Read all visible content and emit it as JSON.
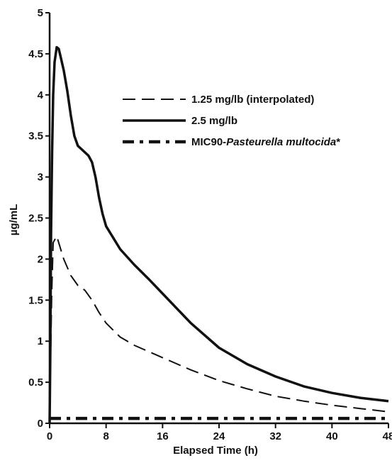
{
  "chart_data": {
    "type": "line",
    "title": "",
    "xlabel": "Elapsed Time (h)",
    "ylabel": "µg/mL",
    "xlim": [
      0,
      48
    ],
    "ylim": [
      0,
      5
    ],
    "xticks": [
      0,
      8,
      16,
      24,
      32,
      40,
      48
    ],
    "yticks": [
      0,
      0.5,
      1,
      1.5,
      2,
      2.5,
      3,
      3.5,
      4,
      4.5,
      5
    ],
    "ytick_labels": [
      "0",
      "0.5",
      "1",
      "1.5",
      "2",
      "2.5",
      "3",
      "3.5",
      "4",
      "4.5",
      "5"
    ],
    "grid": false,
    "legend_position": "top-right",
    "series": [
      {
        "name": "1.25 mg/lb (interpolated)",
        "style": "dashed",
        "color": "#111111",
        "x": [
          0,
          0.1,
          0.3,
          0.5,
          1,
          2,
          3,
          4,
          5,
          6,
          7,
          8,
          10,
          12,
          16,
          20,
          24,
          28,
          32,
          36,
          40,
          44,
          48
        ],
        "y": [
          0,
          0.6,
          1.6,
          2.2,
          2.28,
          2.0,
          1.8,
          1.68,
          1.62,
          1.5,
          1.35,
          1.22,
          1.05,
          0.95,
          0.8,
          0.65,
          0.52,
          0.42,
          0.33,
          0.27,
          0.22,
          0.18,
          0.14
        ]
      },
      {
        "name": "2.5 mg/lb",
        "style": "solid",
        "color": "#111111",
        "x": [
          0,
          0.1,
          0.2,
          0.35,
          0.5,
          0.7,
          1,
          1.3,
          1.6,
          2,
          2.5,
          3,
          3.5,
          4,
          5,
          5.5,
          6,
          6.5,
          7,
          7.5,
          8,
          10,
          12,
          14,
          16,
          20,
          24,
          28,
          32,
          36,
          40,
          44,
          48
        ],
        "y": [
          0,
          0.9,
          2.3,
          3.3,
          4.0,
          4.4,
          4.58,
          4.56,
          4.45,
          4.3,
          4.05,
          3.75,
          3.5,
          3.38,
          3.3,
          3.26,
          3.18,
          3.0,
          2.75,
          2.55,
          2.4,
          2.12,
          1.93,
          1.76,
          1.58,
          1.22,
          0.92,
          0.72,
          0.57,
          0.45,
          0.37,
          0.31,
          0.27
        ]
      },
      {
        "name": "MIC90-",
        "name_italic": "Pasteurella multocida",
        "name_suffix": "*",
        "style": "dashdot",
        "color": "#111111",
        "x": [
          0,
          48
        ],
        "y": [
          0.06,
          0.06
        ]
      }
    ]
  }
}
